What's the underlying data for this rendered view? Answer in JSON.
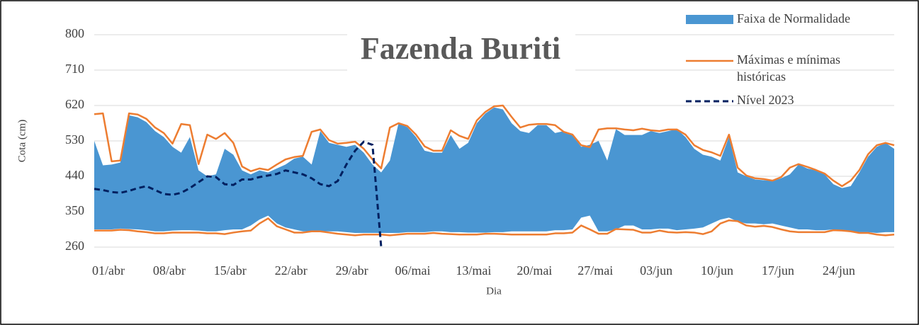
{
  "chart_data": {
    "type": "band-line",
    "title": "Fazenda Buriti",
    "x_label": "Dia",
    "y_label": "Cota (cm)",
    "categories": [
      "01/abr",
      null,
      null,
      null,
      null,
      null,
      null,
      "08/abr",
      null,
      null,
      null,
      null,
      null,
      null,
      "15/abr",
      null,
      null,
      null,
      null,
      null,
      null,
      "22/abr",
      null,
      null,
      null,
      null,
      null,
      null,
      "29/abr",
      null,
      null,
      null,
      null,
      null,
      null,
      "06/mai",
      null,
      null,
      null,
      null,
      null,
      null,
      "13/mai",
      null,
      null,
      null,
      null,
      null,
      null,
      "20/mai",
      null,
      null,
      null,
      null,
      null,
      null,
      "27/mai",
      null,
      null,
      null,
      null,
      null,
      null,
      "03/jun",
      null,
      null,
      null,
      null,
      null,
      null,
      "10/jun",
      null,
      null,
      null,
      null,
      null,
      null,
      "17/jun",
      null,
      null,
      null,
      null,
      null,
      null,
      "24/jun",
      null,
      null,
      null,
      null,
      null,
      null,
      null,
      null
    ],
    "ylim": [
      260,
      800
    ],
    "yticks": [
      260,
      350,
      440,
      530,
      620,
      710,
      800
    ],
    "grid": true,
    "legend": "top-right",
    "series": [
      {
        "name": "Faixa de Normalidade",
        "color": "#4a96d2",
        "upper": [
          530,
          468,
          470,
          475,
          595,
          590,
          578,
          555,
          540,
          515,
          500,
          540,
          455,
          440,
          445,
          510,
          495,
          455,
          445,
          455,
          450,
          460,
          470,
          485,
          490,
          470,
          555,
          525,
          520,
          515,
          520,
          500,
          470,
          450,
          480,
          575,
          565,
          540,
          505,
          500,
          500,
          545,
          510,
          525,
          575,
          600,
          615,
          610,
          575,
          555,
          550,
          570,
          570,
          550,
          555,
          545,
          515,
          520,
          530,
          480,
          560,
          545,
          545,
          545,
          555,
          550,
          555,
          560,
          540,
          510,
          495,
          490,
          480,
          540,
          450,
          440,
          432,
          430,
          428,
          435,
          445,
          470,
          460,
          455,
          445,
          420,
          410,
          415,
          450,
          490,
          515,
          525,
          510
        ],
        "lower": [
          305,
          305,
          305,
          307,
          306,
          305,
          303,
          300,
          300,
          302,
          303,
          303,
          302,
          300,
          300,
          303,
          305,
          305,
          315,
          330,
          340,
          320,
          310,
          305,
          300,
          300,
          300,
          300,
          300,
          298,
          296,
          296,
          296,
          296,
          296,
          296,
          298,
          298,
          298,
          300,
          300,
          298,
          298,
          297,
          297,
          297,
          298,
          298,
          300,
          300,
          300,
          300,
          300,
          303,
          303,
          305,
          335,
          340,
          300,
          300,
          305,
          315,
          315,
          305,
          305,
          307,
          307,
          303,
          305,
          307,
          310,
          320,
          330,
          335,
          325,
          320,
          320,
          318,
          320,
          315,
          310,
          305,
          305,
          303,
          303,
          305,
          303,
          300,
          298,
          298,
          296,
          298,
          298
        ]
      },
      {
        "name": "Máximas e mínimas históricas",
        "color": "#ed7d31",
        "max": [
          598,
          600,
          478,
          480,
          600,
          597,
          586,
          564,
          550,
          523,
          573,
          570,
          471,
          546,
          535,
          550,
          525,
          465,
          453,
          460,
          456,
          470,
          483,
          489,
          492,
          553,
          559,
          532,
          523,
          525,
          528,
          510,
          483,
          460,
          564,
          575,
          568,
          546,
          516,
          505,
          505,
          557,
          543,
          535,
          582,
          604,
          618,
          620,
          591,
          564,
          571,
          573,
          573,
          570,
          553,
          546,
          519,
          514,
          559,
          562,
          562,
          559,
          557,
          561,
          557,
          555,
          559,
          559,
          546,
          519,
          507,
          501,
          492,
          546,
          462,
          442,
          435,
          433,
          429,
          438,
          462,
          471,
          464,
          456,
          447,
          429,
          415,
          429,
          456,
          496,
          519,
          525,
          519
        ],
        "min": [
          302,
          302,
          302,
          304,
          303,
          300,
          298,
          295,
          295,
          297,
          297,
          297,
          297,
          295,
          295,
          293,
          297,
          300,
          302,
          320,
          333,
          313,
          305,
          297,
          297,
          300,
          300,
          297,
          294,
          292,
          290,
          292,
          292,
          292,
          290,
          292,
          294,
          294,
          294,
          296,
          294,
          293,
          292,
          292,
          292,
          294,
          294,
          293,
          292,
          292,
          292,
          292,
          292,
          295,
          295,
          297,
          315,
          305,
          294,
          294,
          306,
          305,
          304,
          297,
          297,
          302,
          298,
          297,
          298,
          297,
          293,
          300,
          320,
          328,
          326,
          315,
          312,
          314,
          311,
          305,
          300,
          298,
          298,
          298,
          298,
          303,
          302,
          300,
          296,
          296,
          292,
          290,
          292
        ]
      },
      {
        "name": "Nível 2023",
        "color": "#002060",
        "values": [
          408,
          405,
          400,
          398,
          403,
          410,
          415,
          405,
          395,
          393,
          398,
          410,
          425,
          440,
          438,
          420,
          418,
          432,
          432,
          438,
          442,
          446,
          455,
          450,
          445,
          435,
          420,
          415,
          428,
          470,
          505,
          528,
          520,
          260,
          null,
          null,
          null,
          null,
          null,
          null,
          null,
          null,
          null,
          null,
          null,
          null,
          null,
          null,
          null,
          null,
          null,
          null,
          null,
          null,
          null,
          null,
          null,
          null,
          null,
          null,
          null,
          null,
          null,
          null,
          null,
          null,
          null,
          null,
          null,
          null,
          null,
          null,
          null,
          null,
          null,
          null,
          null,
          null,
          null,
          null,
          null,
          null,
          null,
          null,
          null,
          null,
          null,
          null,
          null,
          null,
          null,
          null,
          null
        ]
      }
    ]
  }
}
